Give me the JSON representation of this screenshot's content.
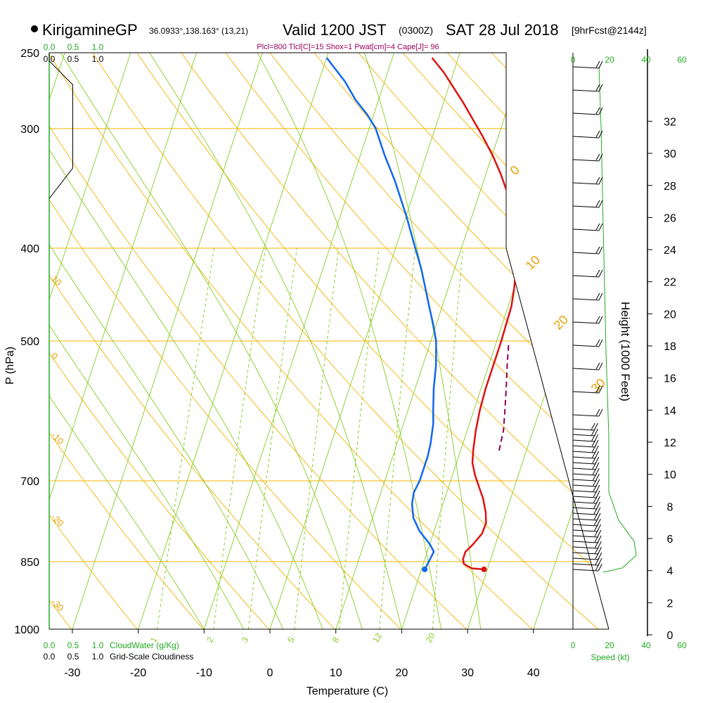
{
  "header": {
    "station": "KirigamineGP",
    "coords": "36.0933°,138.163° (13,21)",
    "valid": "Valid 1200 JST",
    "zulu": "(0300Z)",
    "date": "SAT 28 Jul 2018",
    "forecast": "[9hrFcst@2144z]"
  },
  "params": "Plcl=800 Tlcl[C]=15 Shox=1 Pwat[cm]=4 Cape[J]= 96",
  "colors": {
    "temperature": "#dd1111",
    "dewpoint": "#1166ee",
    "parcel": "#880055",
    "isotherm": "#88cc22",
    "isobar": "#f0b400",
    "dry_adiabat": "#f0b400",
    "mixing_ratio": "#88cc22",
    "wind_speed": "#22aa22"
  },
  "chart_data": {
    "type": "line",
    "title": "",
    "xlabel": "Temperature (C)",
    "ylabel": "P (hPa)",
    "y2label": "Height (1000 Feet)",
    "x_ticks": [
      -30,
      -20,
      -10,
      0,
      10,
      20,
      30,
      40
    ],
    "p_ticks": [
      250,
      300,
      400,
      500,
      700,
      850,
      1000
    ],
    "height_ticks": [
      0,
      2,
      4,
      6,
      8,
      10,
      12,
      14,
      16,
      18,
      20,
      22,
      24,
      26,
      28,
      30,
      32
    ],
    "mixing_ratio_labels": [
      "1",
      "2",
      "3",
      "5",
      "8",
      "12",
      "20"
    ],
    "theta_labels_left": [
      "10",
      "0",
      "-10",
      "-20",
      "-30"
    ],
    "theta_labels_right": [
      "0",
      "10",
      "20",
      "30"
    ],
    "cloud_scale": [
      "0.0",
      "0.5",
      "1.0"
    ],
    "cloud_water_label": "CloudWater (g/Kg)",
    "cloudiness_label": "Grid-Scale Cloudiness",
    "speed_ticks": [
      "0",
      "20",
      "40",
      "60"
    ],
    "speed_label": "Speed (kt)",
    "series": [
      {
        "key": "temperature",
        "points": [
          [
            29.5,
            866
          ],
          [
            27.6,
            864
          ],
          [
            26.2,
            855
          ],
          [
            25.8,
            845
          ],
          [
            25.8,
            830
          ],
          [
            26.6,
            815
          ],
          [
            27.4,
            795
          ],
          [
            27.5,
            775
          ],
          [
            26.9,
            755
          ],
          [
            25.8,
            730
          ],
          [
            24.6,
            710
          ],
          [
            23.4,
            690
          ],
          [
            22.4,
            670
          ],
          [
            21.9,
            650
          ],
          [
            21.3,
            620
          ],
          [
            20.9,
            590
          ],
          [
            20.7,
            560
          ],
          [
            20.7,
            530
          ],
          [
            20.7,
            500
          ],
          [
            20.6,
            480
          ],
          [
            20.5,
            460
          ],
          [
            20.0,
            440
          ],
          [
            18.9,
            410
          ],
          [
            18.0,
            390
          ],
          [
            16.5,
            370
          ],
          [
            14.8,
            355
          ],
          [
            12.3,
            335
          ],
          [
            10.1,
            320
          ],
          [
            7.5,
            305
          ],
          [
            3.0,
            282
          ],
          [
            -1.5,
            262
          ],
          [
            -4.0,
            253
          ]
        ]
      },
      {
        "key": "dewpoint",
        "points": [
          [
            20.5,
            866
          ],
          [
            20.6,
            860
          ],
          [
            21.0,
            830
          ],
          [
            20.0,
            815
          ],
          [
            17.8,
            790
          ],
          [
            16.2,
            765
          ],
          [
            15.3,
            740
          ],
          [
            15.0,
            720
          ],
          [
            15.3,
            700
          ],
          [
            15.3,
            680
          ],
          [
            15.3,
            660
          ],
          [
            15.1,
            640
          ],
          [
            14.5,
            610
          ],
          [
            13.8,
            590
          ],
          [
            12.8,
            560
          ],
          [
            12.0,
            530
          ],
          [
            10.8,
            500
          ],
          [
            9.5,
            480
          ],
          [
            8.0,
            460
          ],
          [
            6.5,
            440
          ],
          [
            4.9,
            420
          ],
          [
            3.0,
            400
          ],
          [
            0.0,
            370
          ],
          [
            -3.5,
            340
          ],
          [
            -6.3,
            320
          ],
          [
            -9.0,
            300
          ],
          [
            -11.0,
            290
          ],
          [
            -13.5,
            280
          ],
          [
            -16.0,
            268
          ],
          [
            -20.0,
            253
          ]
        ]
      },
      {
        "key": "parcel",
        "points": [
          [
            22.0,
            505
          ],
          [
            22.8,
            530
          ],
          [
            23.8,
            560
          ],
          [
            24.7,
            590
          ],
          [
            25.5,
            620
          ],
          [
            25.9,
            655
          ]
        ]
      }
    ],
    "surface_temperature": [
      29.5,
      866
    ],
    "surface_dewpoint": [
      20.5,
      866
    ],
    "cloudiness_profile": [
      [
        0.0,
        250
      ],
      [
        0.0,
        255
      ],
      [
        0.5,
        270
      ],
      [
        0.5,
        330
      ],
      [
        0.0,
        355
      ]
    ]
  }
}
